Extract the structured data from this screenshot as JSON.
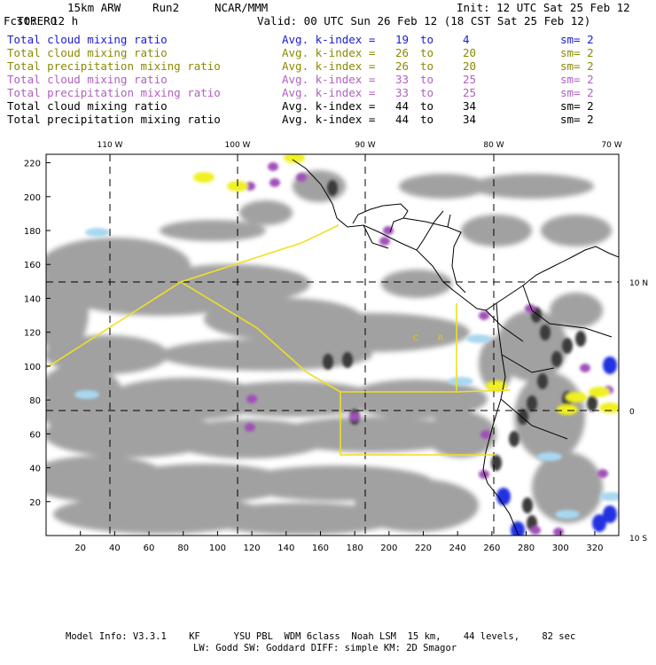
{
  "header": {
    "model": "TORERO",
    "resolution": "15km ARW",
    "run": "Run2",
    "center": "NCAR/MMM",
    "init": "Init: 12 UTC Sat 25 Feb 12",
    "fcst_label": "Fcst:",
    "fcst_value": "12 h",
    "valid": "Valid: 00 UTC Sun 26 Feb 12 (18 CST Sat 25 Feb 12)"
  },
  "legend_rows": [
    {
      "field": "Total cloud mixing ratio",
      "kidx": "Avg. k-index =",
      "from": "19",
      "to_word": "to",
      "to": "4",
      "sm": "sm= 2",
      "color": "#1a1ad6"
    },
    {
      "field": "Total cloud mixing ratio",
      "kidx": "Avg. k-index =",
      "from": "26",
      "to_word": "to",
      "to": "20",
      "sm": "sm= 2",
      "color": "#8a8a00"
    },
    {
      "field": "Total precipitation mixing ratio",
      "kidx": "Avg. k-index =",
      "from": "26",
      "to_word": "to",
      "to": "20",
      "sm": "sm= 2",
      "color": "#8a8a00"
    },
    {
      "field": "Total cloud mixing ratio",
      "kidx": "Avg. k-index =",
      "from": "33",
      "to_word": "to",
      "to": "25",
      "sm": "sm= 2",
      "color": "#b060c0"
    },
    {
      "field": "Total precipitation mixing ratio",
      "kidx": "Avg. k-index =",
      "from": "33",
      "to_word": "to",
      "to": "25",
      "sm": "sm= 2",
      "color": "#b060c0"
    },
    {
      "field": "Total cloud mixing ratio",
      "kidx": "Avg. k-index =",
      "from": "44",
      "to_word": "to",
      "to": "34",
      "sm": "sm= 2",
      "color": "#000000"
    },
    {
      "field": "Total precipitation mixing ratio",
      "kidx": "Avg. k-index =",
      "from": "44",
      "to_word": "to",
      "to": "34",
      "sm": "sm= 2",
      "color": "#000000"
    }
  ],
  "map": {
    "lon_labels": [
      "110 W",
      "100 W",
      "90 W",
      "80 W",
      "70 W"
    ],
    "lat_labels": [
      "10 N",
      "0",
      "10 S"
    ],
    "x_ticks": [
      "20",
      "40",
      "60",
      "80",
      "100",
      "120",
      "140",
      "160",
      "180",
      "200",
      "220",
      "240",
      "260",
      "280",
      "300",
      "320"
    ],
    "y_ticks": [
      "20",
      "40",
      "60",
      "80",
      "100",
      "120",
      "140",
      "160",
      "180",
      "200",
      "220"
    ],
    "x_range": [
      0,
      334
    ],
    "y_range": [
      0,
      225
    ],
    "colors": {
      "cloud_gray": "#9a9a9a",
      "dark_core": "#3a3a3a",
      "purple": "#a050b8",
      "yellow": "#f0f020",
      "blue": "#2030e0",
      "light_blue": "#a8d8f0",
      "domain_line": "#f0e020"
    },
    "station_labels": [
      "C",
      "R"
    ]
  },
  "footer": {
    "line1": "Model Info: V3.3.1    KF      YSU PBL  WDM 6class  Noah LSM  15 km,    44 levels,    82 sec",
    "line2": "LW: Godd SW: Goddard DIFF: simple KM: 2D Smagor"
  }
}
